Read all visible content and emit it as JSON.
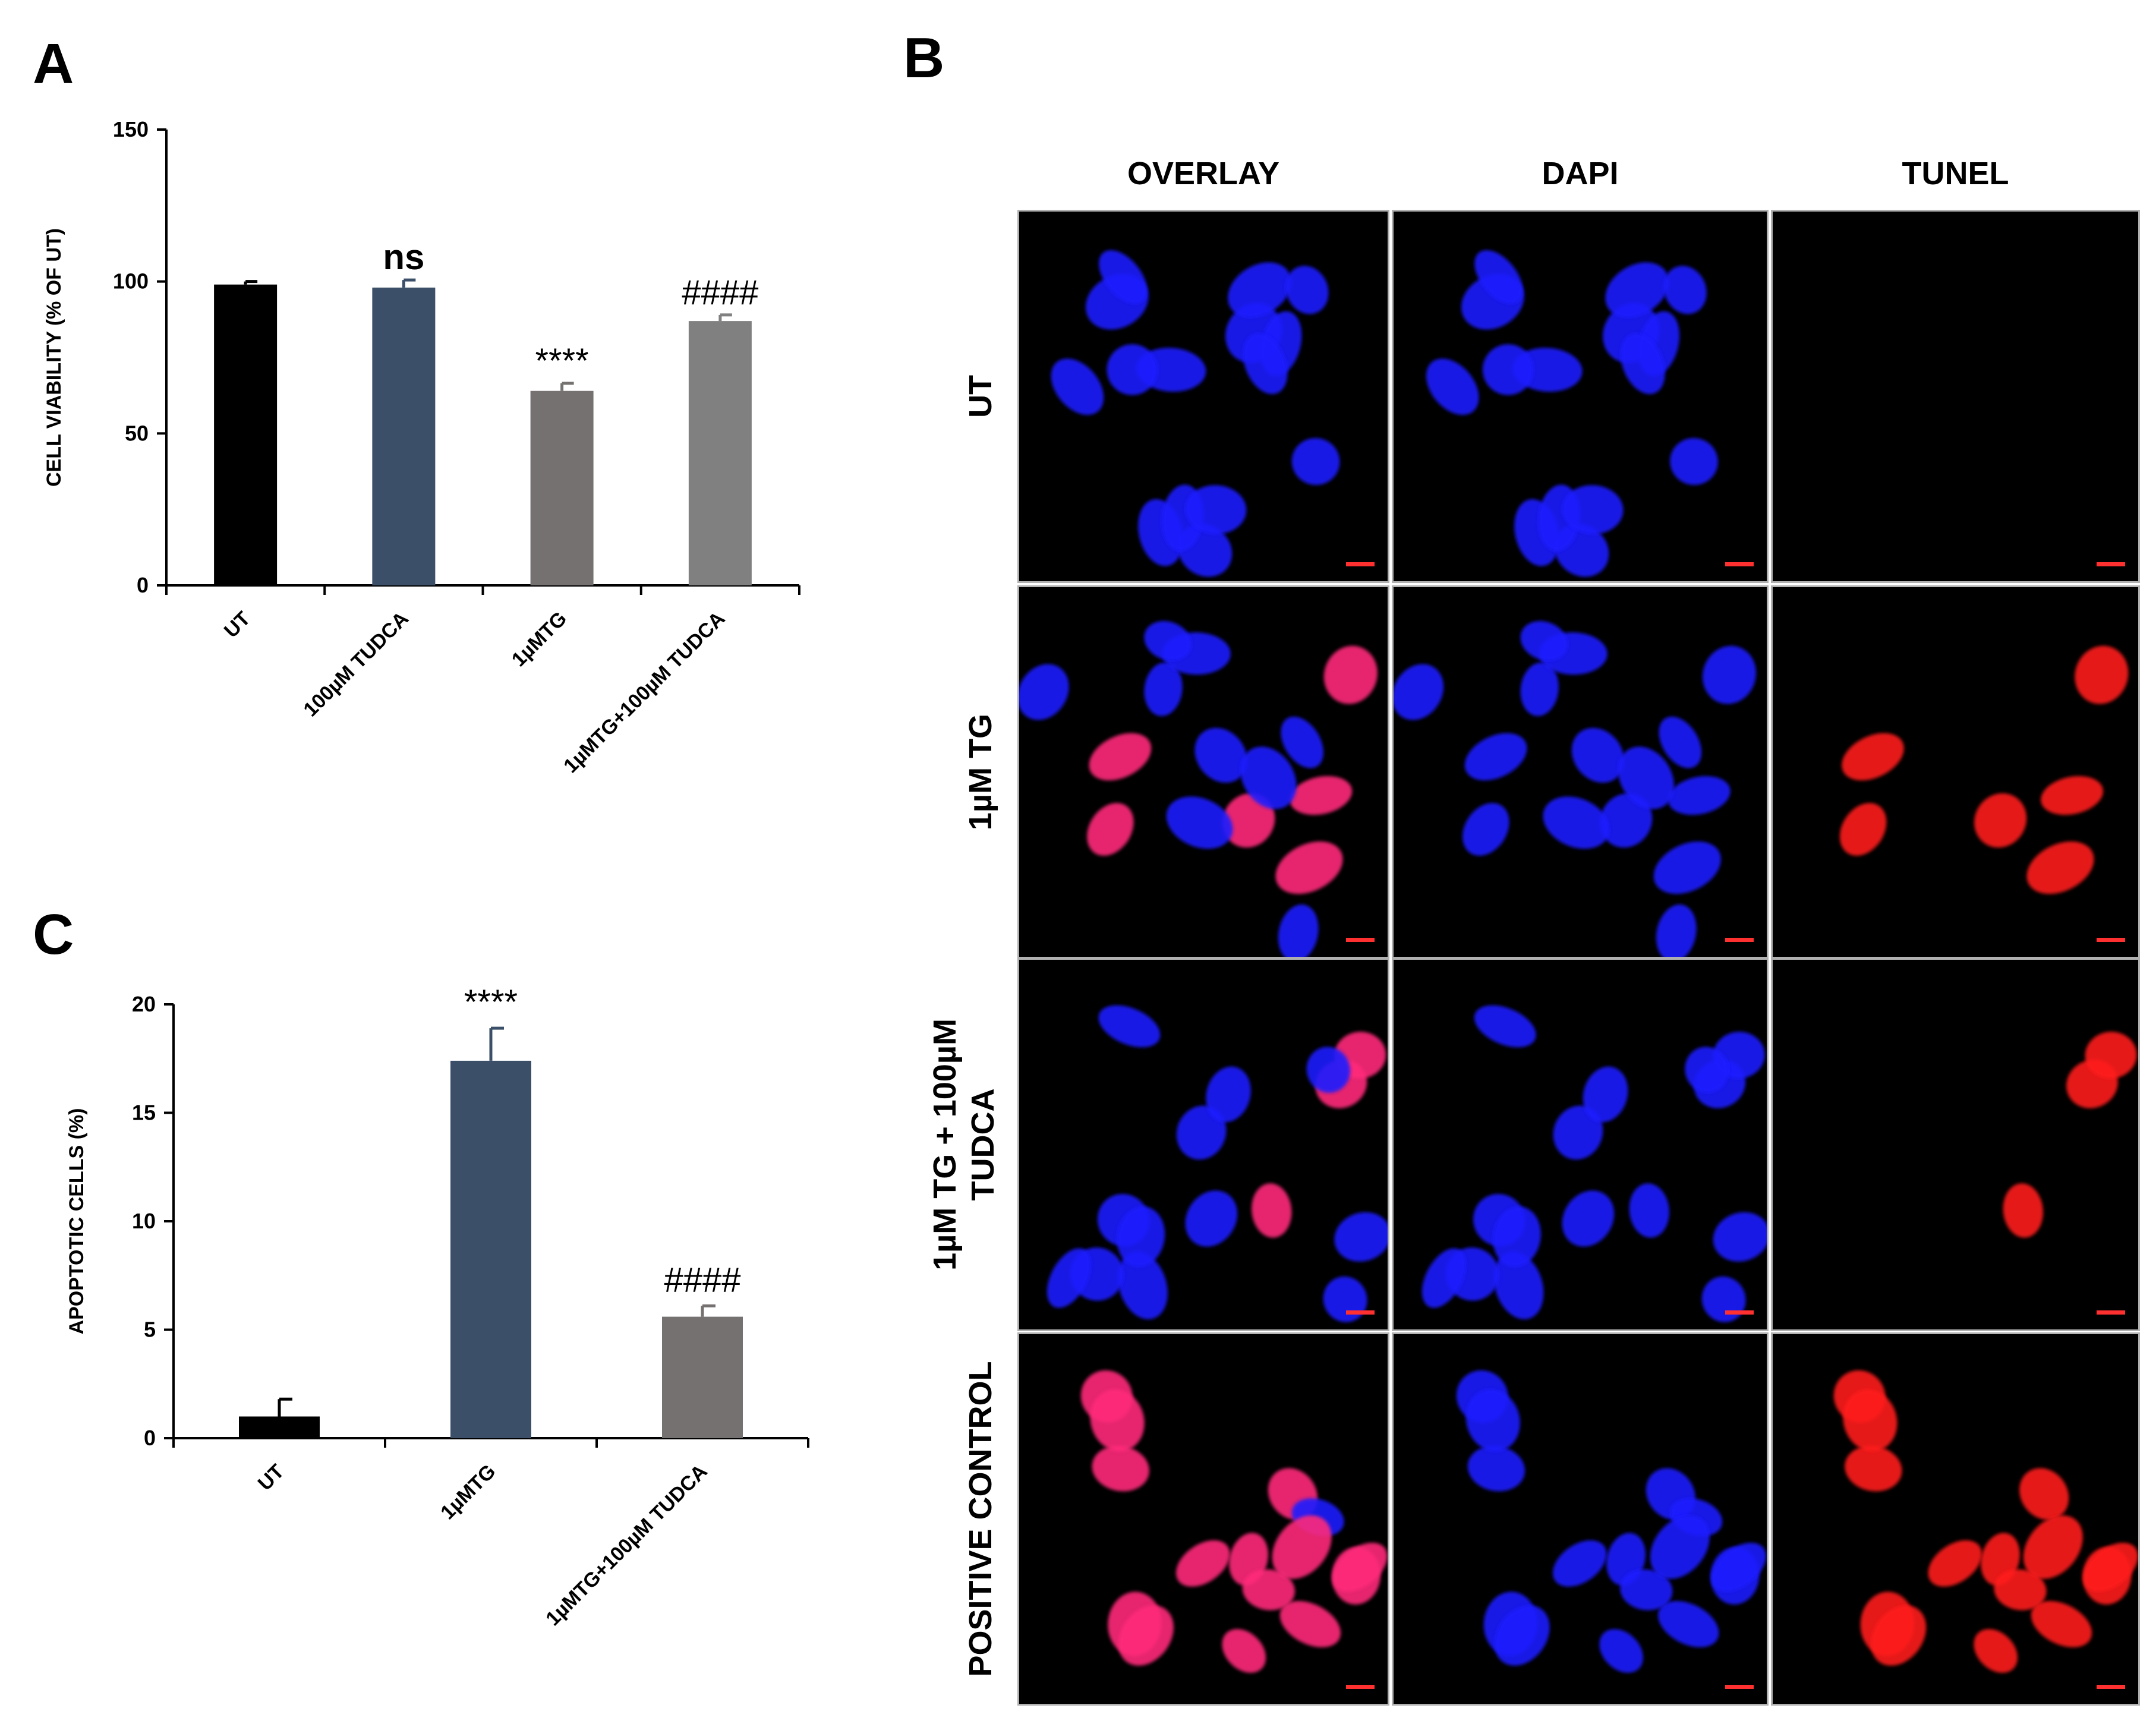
{
  "panels": {
    "a": {
      "letter": "A"
    },
    "b": {
      "letter": "B"
    },
    "c": {
      "letter": "C"
    }
  },
  "chart_data": [
    {
      "id": "A",
      "type": "bar",
      "ylabel": "CELL VIABILITY (% OF UT)",
      "xlabel": "",
      "ylim": [
        0,
        150
      ],
      "yticks": [
        0,
        50,
        100,
        150
      ],
      "categories": [
        "UT",
        "100µM TUDCA",
        "1µMTG",
        "1µMTG+100µM TUDCA"
      ],
      "values": [
        99,
        98,
        64,
        87
      ],
      "errors": [
        1,
        2.5,
        2.5,
        2
      ],
      "annotations": [
        "",
        "ns",
        "****",
        "####"
      ],
      "colors": [
        "#000000",
        "#3b5068",
        "#757170",
        "#808080"
      ],
      "grid": false,
      "legend": "none"
    },
    {
      "id": "C",
      "type": "bar",
      "ylabel": "APOPTOTIC CELLS (%)",
      "xlabel": "",
      "ylim": [
        0,
        20
      ],
      "yticks": [
        0,
        5,
        10,
        15,
        20
      ],
      "categories": [
        "UT",
        "1µMTG",
        "1µMTG+100µM TUDCA"
      ],
      "values": [
        1,
        17.4,
        5.6
      ],
      "errors": [
        0.8,
        1.5,
        0.5
      ],
      "annotations": [
        "",
        "****",
        "####"
      ],
      "colors": [
        "#000000",
        "#3b5068",
        "#757170"
      ],
      "grid": false,
      "legend": "none"
    }
  ],
  "micrographs": {
    "columns": [
      "OVERLAY",
      "DAPI",
      "TUNEL"
    ],
    "rows": [
      {
        "label": "UT"
      },
      {
        "label": "1µM TG"
      },
      {
        "label_line1": "1µM TG + 100µM",
        "label_line2": "TUDCA"
      },
      {
        "label": "POSITIVE CONTROL"
      }
    ],
    "colors": {
      "background": "#000000",
      "dapi": "#1a1aff",
      "tunel": "#ff1a1a",
      "overlay": "#ff2a7a"
    }
  }
}
